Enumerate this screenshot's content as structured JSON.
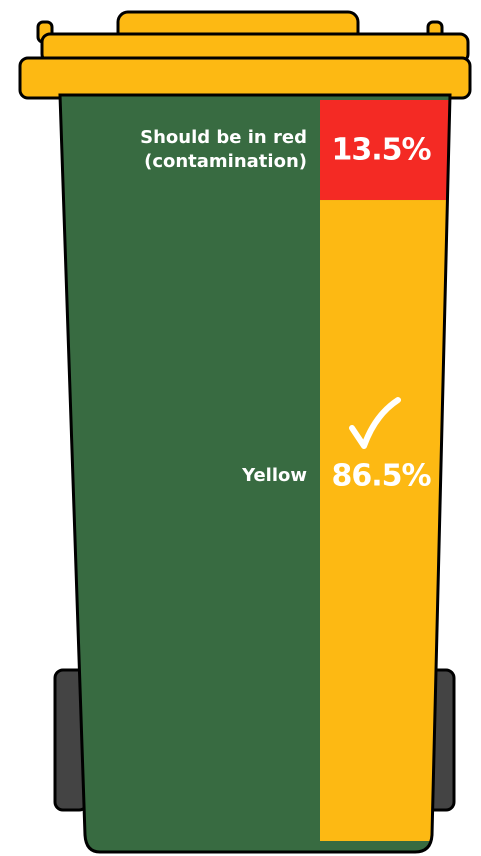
{
  "chart_data": {
    "type": "stacked-bar",
    "series": [
      {
        "name": "Should be in red (contamination)",
        "color": "#f42a24",
        "values": [
          13.5
        ],
        "value_labels": [
          "13.5%"
        ]
      },
      {
        "name": "Yellow",
        "color": "#fdb913",
        "values": [
          86.5
        ],
        "value_labels": [
          "86.5%"
        ]
      }
    ]
  }
}
